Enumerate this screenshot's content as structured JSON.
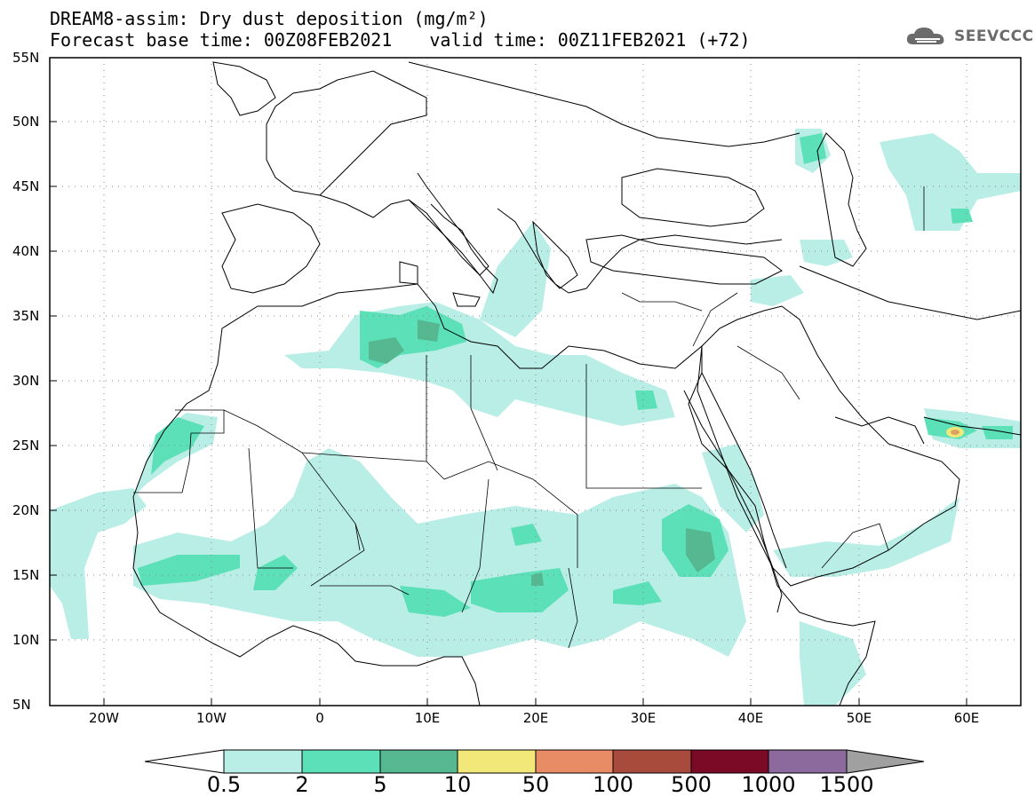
{
  "title": {
    "line1": "DREAM8-assim: Dry dust deposition (mg/m²)",
    "base_time": "Forecast base time: 00Z08FEB2021",
    "valid_time": "valid time: 00Z11FEB2021 (+72)"
  },
  "logo": {
    "text": "SEEVCCC",
    "icon": "cloud-icon"
  },
  "map": {
    "lat_labels": [
      "55N",
      "50N",
      "45N",
      "40N",
      "35N",
      "30N",
      "25N",
      "20N",
      "15N",
      "10N",
      "5N"
    ],
    "lon_labels": [
      "20W",
      "10W",
      "0",
      "10E",
      "20E",
      "30E",
      "40E",
      "50E",
      "60E"
    ],
    "grid": "dotted"
  },
  "colorbar": {
    "labels": [
      "0.5",
      "2",
      "5",
      "10",
      "50",
      "100",
      "500",
      "1000",
      "1500"
    ],
    "colors": [
      "#b8eee6",
      "#5ce0b8",
      "#55b890",
      "#f2e87a",
      "#e88c66",
      "#a84a3c",
      "#7a0a26",
      "#8c6a9e"
    ],
    "over_color": "#a0a0a0",
    "under_color": "#ffffff"
  },
  "colors": {
    "light": "#b8eee6",
    "medium": "#5ce0b8",
    "dark": "#55b890",
    "yellow": "#f2e87a"
  }
}
